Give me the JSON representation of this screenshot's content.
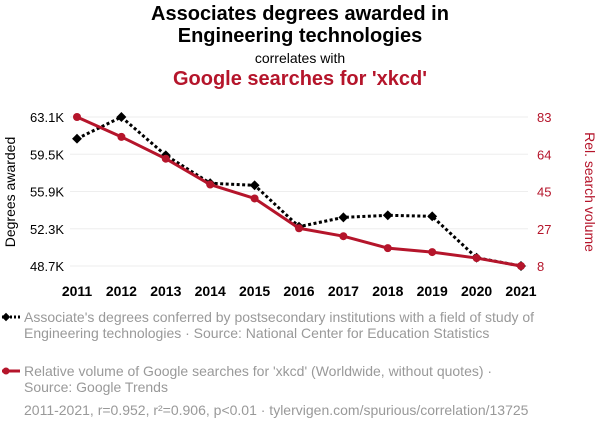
{
  "chart_data": {
    "type": "line",
    "title_line1": "Associates degrees awarded in",
    "title_line2": "Engineering technologies",
    "subtitle": "correlates with",
    "title2": "Google searches for 'xkcd'",
    "xlabel": "",
    "ylabel_left": "Degrees awarded",
    "ylabel_right": "Rel. search volume",
    "categories": [
      "2011",
      "2012",
      "2013",
      "2014",
      "2015",
      "2016",
      "2017",
      "2018",
      "2019",
      "2020",
      "2021"
    ],
    "left_ticks": [
      "63.1K",
      "59.5K",
      "55.9K",
      "52.3K",
      "48.7K"
    ],
    "right_ticks": [
      "83",
      "64",
      "45",
      "27",
      "8"
    ],
    "ylim_left": [
      48.7,
      63.1
    ],
    "ylim_right": [
      8,
      83
    ],
    "grid": true,
    "series": [
      {
        "name": "Associate's degrees conferred by postsecondary institutions with a field of study of Engineering technologies · Source: National Center for Education Statistics",
        "axis": "left",
        "color": "#000000",
        "style": "dotted",
        "marker": "diamond",
        "values": [
          61.0,
          63.1,
          59.4,
          56.7,
          56.5,
          52.5,
          53.4,
          53.6,
          53.5,
          49.5,
          48.7
        ]
      },
      {
        "name": "Relative volume of Google searches for 'xkcd' (Worldwide, without quotes) · Source: Google Trends",
        "axis": "right",
        "color": "#b5152b",
        "style": "solid",
        "marker": "circle",
        "values": [
          83,
          73,
          62,
          49,
          42,
          27,
          23,
          17,
          15,
          12,
          8
        ]
      }
    ],
    "footer": "2011-2021, r=0.952, r²=0.906, p<0.01 · tylervigen.com/spurious/correlation/13725"
  }
}
